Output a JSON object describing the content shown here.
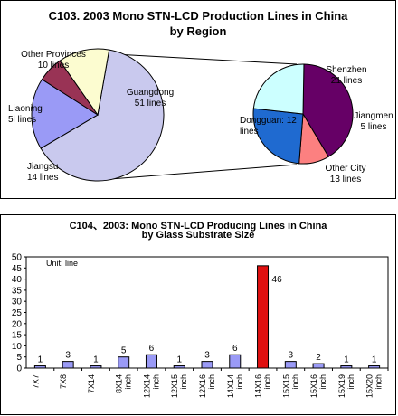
{
  "colors": {
    "guangdong": "#c9c9ee",
    "jiangsu": "#9a9af6",
    "liaoning": "#993355",
    "other_provinces": "#fcfcd0",
    "shenzhen": "#660066",
    "jiangmen": "#fc8080",
    "other_city": "#1f6ad0",
    "dongguan": "#ccffff",
    "bar": "#9a9af6",
    "bar_highlight": "#e01010"
  },
  "chart_data": [
    {
      "type": "pie",
      "title": "C103. 2003 Mono STN-LCD Production Lines in China",
      "subtitle": "by Region",
      "slices": [
        {
          "label_line1": "Guangdong",
          "label_line2": "51 lines",
          "value": 51,
          "color_key": "guangdong"
        },
        {
          "label_line1": "Jiangsu",
          "label_line2": "14 lines",
          "value": 14,
          "color_key": "jiangsu"
        },
        {
          "label_line1": "Liaoning",
          "label_line2": "5l lines",
          "value": 5,
          "color_key": "liaoning"
        },
        {
          "label_line1": "Other Provinces",
          "label_line2": "10 lines",
          "value": 10,
          "color_key": "other_provinces"
        }
      ]
    },
    {
      "type": "pie",
      "title": "",
      "slices": [
        {
          "label_line1": "Shenzhen",
          "label_line2": "21 lines",
          "value": 21,
          "color_key": "shenzhen"
        },
        {
          "label_line1": "Jiangmen",
          "label_line2": "5 lines",
          "value": 5,
          "color_key": "jiangmen"
        },
        {
          "label_line1": "Other City",
          "label_line2": "13 lines",
          "value": 13,
          "color_key": "other_city"
        },
        {
          "label_line1": "Dongguan: 12",
          "label_line2": "lines",
          "value": 12,
          "color_key": "dongguan"
        }
      ]
    },
    {
      "type": "bar",
      "title": "C104、2003: Mono STN-LCD Producing Lines in China",
      "subtitle": "by Glass Substrate Size",
      "unit_label": "Unit: line",
      "ylim": [
        0,
        50
      ],
      "yticks": [
        0,
        5,
        10,
        15,
        20,
        25,
        30,
        35,
        40,
        45,
        50
      ],
      "categories": [
        {
          "line1": "7X7",
          "line2": ""
        },
        {
          "line1": "7X8",
          "line2": ""
        },
        {
          "line1": "7X14",
          "line2": ""
        },
        {
          "line1": "8X14",
          "line2": "inch"
        },
        {
          "line1": "12X14",
          "line2": "inch"
        },
        {
          "line1": "12X15",
          "line2": "inch"
        },
        {
          "line1": "12X16",
          "line2": "inch"
        },
        {
          "line1": "14X14",
          "line2": "inch"
        },
        {
          "line1": "14X16",
          "line2": "inch"
        },
        {
          "line1": "15X15",
          "line2": "inch"
        },
        {
          "line1": "15X16",
          "line2": "inch"
        },
        {
          "line1": "15X19",
          "line2": "inch"
        },
        {
          "line1": "15X20",
          "line2": "inch"
        }
      ],
      "values": [
        1,
        3,
        1,
        5,
        6,
        1,
        3,
        6,
        46,
        3,
        2,
        1,
        1
      ],
      "highlight_index": 8
    }
  ]
}
